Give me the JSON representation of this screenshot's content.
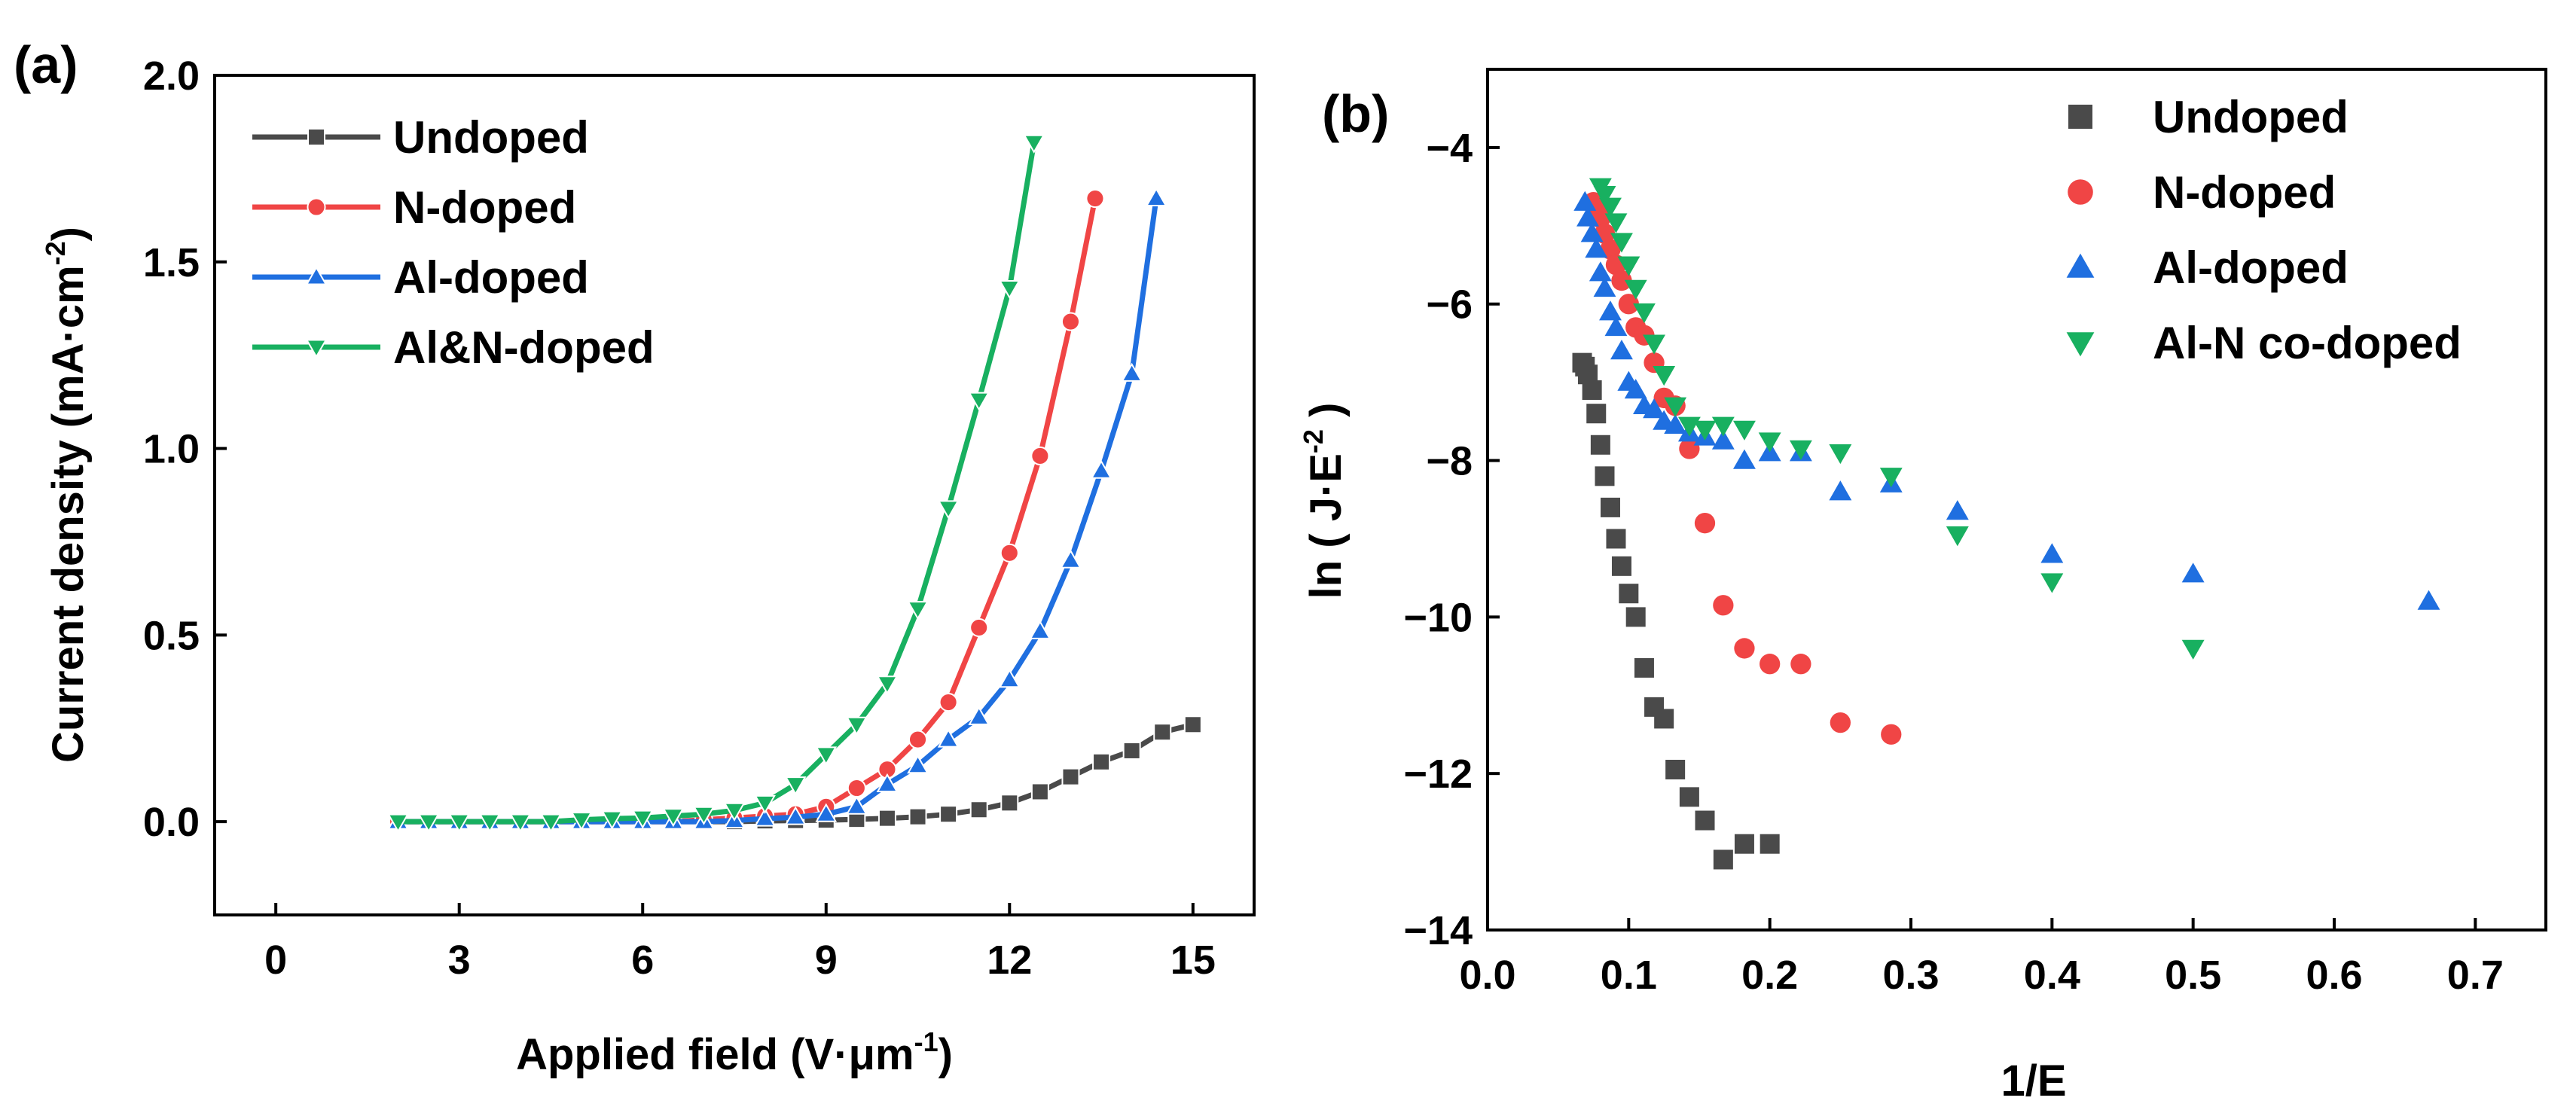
{
  "figure": {
    "panel_a_label": "(a)",
    "panel_b_label": "(b)"
  },
  "colors": {
    "undoped": "#4a4a4a",
    "n_doped": "#f04545",
    "al_doped": "#1f6fe0",
    "aln_doped": "#18b060"
  },
  "chart_data": [
    {
      "type": "line",
      "panel": "(a)",
      "xlabel": "Applied field (V·μm",
      "xlabel_sup": "-1",
      "xlabel_end": ")",
      "ylabel": "Current density (mA·cm",
      "ylabel_sup": "-2",
      "ylabel_end": ")",
      "xlim": [
        -1,
        16
      ],
      "ylim": [
        -0.25,
        2.0
      ],
      "xticks": [
        0,
        3,
        6,
        9,
        12,
        15
      ],
      "xtick_labels": [
        "0",
        "3",
        "6",
        "9",
        "12",
        "15"
      ],
      "yticks": [
        0.0,
        0.5,
        1.0,
        1.5,
        2.0
      ],
      "ytick_labels": [
        "0.0",
        "0.5",
        "1.0",
        "1.5",
        "2.0"
      ],
      "legend_position": "top-left",
      "series": [
        {
          "name": "Undoped",
          "marker": "square",
          "color": "#4a4a4a",
          "x": [
            2,
            2.5,
            3,
            3.5,
            4,
            4.5,
            5,
            5.5,
            6,
            6.5,
            7,
            7.5,
            8,
            8.5,
            9,
            9.5,
            10,
            10.5,
            11,
            11.5,
            12,
            12.5,
            13,
            13.5,
            14,
            14.5,
            15
          ],
          "y": [
            0,
            0,
            0,
            0,
            0,
            0,
            0,
            0,
            0,
            0,
            0,
            0,
            0.002,
            0.003,
            0.004,
            0.006,
            0.009,
            0.013,
            0.02,
            0.032,
            0.05,
            0.08,
            0.12,
            0.16,
            0.19,
            0.24,
            0.26
          ]
        },
        {
          "name": "N-doped",
          "marker": "circle",
          "color": "#f04545",
          "x": [
            2,
            2.5,
            3,
            3.5,
            4,
            4.5,
            5,
            5.5,
            6,
            6.5,
            7,
            7.5,
            8,
            8.5,
            9,
            9.5,
            10,
            10.5,
            11,
            11.5,
            12,
            12.5,
            13,
            13.4
          ],
          "y": [
            0,
            0,
            0,
            0,
            0,
            0,
            0,
            0,
            0,
            0,
            0.005,
            0.01,
            0.015,
            0.02,
            0.04,
            0.09,
            0.14,
            0.22,
            0.32,
            0.52,
            0.72,
            0.98,
            1.34,
            1.67
          ]
        },
        {
          "name": "Al-doped",
          "marker": "triangle-up",
          "color": "#1f6fe0",
          "x": [
            2,
            2.5,
            3,
            3.5,
            4,
            4.5,
            5,
            5.5,
            6,
            6.5,
            7,
            7.5,
            8,
            8.5,
            9,
            9.5,
            10,
            10.5,
            11,
            11.5,
            12,
            12.5,
            13,
            13.5,
            14,
            14.4
          ],
          "y": [
            0,
            0,
            0,
            0,
            0,
            0,
            0,
            0,
            0,
            0,
            0,
            0.003,
            0.008,
            0.012,
            0.02,
            0.04,
            0.1,
            0.15,
            0.22,
            0.28,
            0.38,
            0.51,
            0.7,
            0.94,
            1.2,
            1.67
          ]
        },
        {
          "name": "Al&N-doped",
          "marker": "triangle-down",
          "color": "#18b060",
          "x": [
            2,
            2.5,
            3,
            3.5,
            4,
            4.5,
            5,
            5.5,
            6,
            6.5,
            7,
            7.5,
            8,
            8.5,
            9,
            9.5,
            10,
            10.5,
            11,
            11.5,
            12,
            12.4
          ],
          "y": [
            0,
            0,
            0,
            0,
            0,
            0,
            0.005,
            0.008,
            0.01,
            0.015,
            0.02,
            0.03,
            0.05,
            0.1,
            0.18,
            0.26,
            0.37,
            0.57,
            0.84,
            1.13,
            1.43,
            1.82
          ]
        }
      ]
    },
    {
      "type": "scatter",
      "panel": "(b)",
      "xlabel": "1/E",
      "ylabel": "ln ( J·E",
      "ylabel_sup": "-2",
      "ylabel_end": " )",
      "xlim": [
        0.0,
        0.75
      ],
      "ylim": [
        -14,
        -3
      ],
      "xticks": [
        0.0,
        0.1,
        0.2,
        0.3,
        0.4,
        0.5,
        0.6,
        0.7
      ],
      "xtick_labels": [
        "0.0",
        "0.1",
        "0.2",
        "0.3",
        "0.4",
        "0.5",
        "0.6",
        "0.7"
      ],
      "yticks": [
        -14,
        -12,
        -10,
        -8,
        -6,
        -4
      ],
      "ytick_labels": [
        "−14",
        "−12",
        "−10",
        "−8",
        "−6",
        "−4"
      ],
      "legend_position": "top-right",
      "series": [
        {
          "name": "Undoped",
          "marker": "square",
          "color": "#4a4a4a",
          "x": [
            0.067,
            0.069,
            0.071,
            0.074,
            0.077,
            0.08,
            0.083,
            0.087,
            0.091,
            0.095,
            0.1,
            0.105,
            0.111,
            0.118,
            0.125,
            0.133,
            0.143,
            0.154,
            0.167,
            0.182,
            0.2
          ],
          "y": [
            -6.75,
            -6.8,
            -6.9,
            -7.1,
            -7.4,
            -7.8,
            -8.2,
            -8.6,
            -9.0,
            -9.35,
            -9.7,
            -10.0,
            -10.65,
            -11.15,
            -11.3,
            -11.95,
            -12.3,
            -12.6,
            -13.1,
            -12.9,
            -12.9
          ]
        },
        {
          "name": "N-doped",
          "marker": "circle",
          "color": "#f04545",
          "x": [
            0.075,
            0.077,
            0.08,
            0.083,
            0.087,
            0.091,
            0.095,
            0.1,
            0.105,
            0.111,
            0.118,
            0.125,
            0.133,
            0.143,
            0.154,
            0.167,
            0.182,
            0.2,
            0.222,
            0.25,
            0.286
          ],
          "y": [
            -4.7,
            -4.75,
            -4.9,
            -5.1,
            -5.3,
            -5.5,
            -5.7,
            -6.0,
            -6.3,
            -6.4,
            -6.75,
            -7.2,
            -7.3,
            -7.85,
            -8.8,
            -9.85,
            -10.4,
            -10.6,
            -10.6,
            -11.35,
            -11.5
          ]
        },
        {
          "name": "Al-doped",
          "marker": "triangle-up",
          "color": "#1f6fe0",
          "x": [
            0.069,
            0.071,
            0.074,
            0.077,
            0.08,
            0.083,
            0.087,
            0.091,
            0.095,
            0.1,
            0.105,
            0.111,
            0.118,
            0.125,
            0.133,
            0.143,
            0.154,
            0.167,
            0.182,
            0.2,
            0.222,
            0.25,
            0.286,
            0.333,
            0.4,
            0.5,
            0.667
          ],
          "y": [
            -4.7,
            -4.9,
            -5.1,
            -5.3,
            -5.6,
            -5.8,
            -6.1,
            -6.3,
            -6.6,
            -7.0,
            -7.1,
            -7.3,
            -7.35,
            -7.5,
            -7.55,
            -7.65,
            -7.7,
            -7.75,
            -8.0,
            -7.9,
            -7.9,
            -8.4,
            -8.3,
            -8.65,
            -9.2,
            -9.45,
            -9.8
          ]
        },
        {
          "name": "Al-N co-doped",
          "marker": "triangle-down",
          "color": "#18b060",
          "x": [
            0.08,
            0.083,
            0.087,
            0.091,
            0.095,
            0.1,
            0.105,
            0.111,
            0.118,
            0.125,
            0.133,
            0.143,
            0.154,
            0.167,
            0.182,
            0.2,
            0.222,
            0.25,
            0.286,
            0.333,
            0.4,
            0.5
          ],
          "y": [
            -4.5,
            -4.6,
            -4.75,
            -4.95,
            -5.2,
            -5.5,
            -5.8,
            -6.1,
            -6.5,
            -6.9,
            -7.3,
            -7.55,
            -7.6,
            -7.55,
            -7.6,
            -7.75,
            -7.85,
            -7.9,
            -8.2,
            -8.95,
            -9.55,
            -10.4
          ]
        }
      ]
    }
  ]
}
